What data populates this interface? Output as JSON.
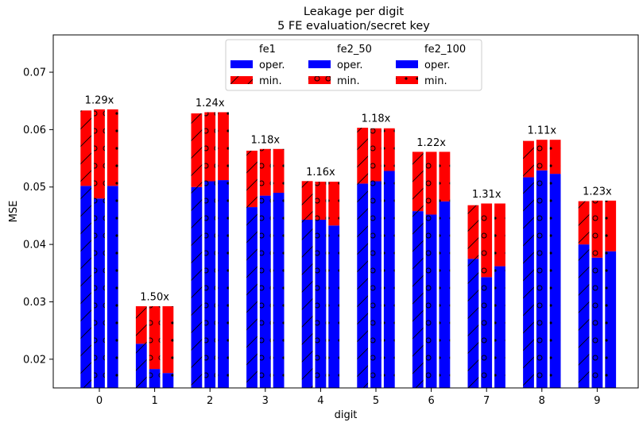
{
  "chart_data": {
    "type": "bar",
    "title": "Leakage per digit",
    "subtitle": "5 FE evaluation/secret key",
    "xlabel": "digit",
    "ylabel": "MSE",
    "ylim": [
      0.015,
      0.0765
    ],
    "yticks": [
      0.02,
      0.03,
      0.04,
      0.05,
      0.06,
      0.07
    ],
    "ytick_labels": [
      "0.02",
      "0.03",
      "0.04",
      "0.05",
      "0.06",
      "0.07"
    ],
    "categories": [
      "0",
      "1",
      "2",
      "3",
      "4",
      "5",
      "6",
      "7",
      "8",
      "9"
    ],
    "stacked": true,
    "colors": {
      "oper": "#0000ff",
      "min": "#ff0000",
      "edge": "#ffffff",
      "hatch": "#000000"
    },
    "groups": [
      {
        "name": "fe1",
        "hatch": "diagonal",
        "oper": [
          0.0502,
          0.0227,
          0.05,
          0.0465,
          0.0443,
          0.0506,
          0.0458,
          0.0375,
          0.0517,
          0.04
        ],
        "min": [
          0.0634,
          0.0293,
          0.0629,
          0.0564,
          0.0511,
          0.0604,
          0.0562,
          0.0469,
          0.0581,
          0.0476
        ]
      },
      {
        "name": "fe2_50",
        "hatch": "circle",
        "oper": [
          0.048,
          0.0183,
          0.051,
          0.0485,
          0.0443,
          0.051,
          0.0452,
          0.0343,
          0.0529,
          0.0377
        ],
        "min": [
          0.0636,
          0.0293,
          0.0631,
          0.0567,
          0.051,
          0.0603,
          0.0562,
          0.0472,
          0.0583,
          0.0477
        ]
      },
      {
        "name": "fe2_100",
        "hatch": "dot",
        "oper": [
          0.0502,
          0.0176,
          0.0512,
          0.049,
          0.0433,
          0.0528,
          0.0475,
          0.0362,
          0.0523,
          0.0388
        ],
        "min": [
          0.0636,
          0.0293,
          0.0631,
          0.0567,
          0.051,
          0.0603,
          0.0562,
          0.0472,
          0.0583,
          0.0477
        ]
      }
    ],
    "annotations": [
      "1.29x",
      "1.50x",
      "1.24x",
      "1.18x",
      "1.16x",
      "1.18x",
      "1.22x",
      "1.31x",
      "1.11x",
      "1.23x"
    ],
    "legend": {
      "placement": "top-center",
      "columns": [
        {
          "title": "fe1",
          "entries": [
            "oper.",
            "min."
          ],
          "hatch": "diagonal"
        },
        {
          "title": "fe2_50",
          "entries": [
            "oper.",
            "min."
          ],
          "hatch": "circle"
        },
        {
          "title": "fe2_100",
          "entries": [
            "oper.",
            "min."
          ],
          "hatch": "dot"
        }
      ]
    },
    "grid": false
  }
}
